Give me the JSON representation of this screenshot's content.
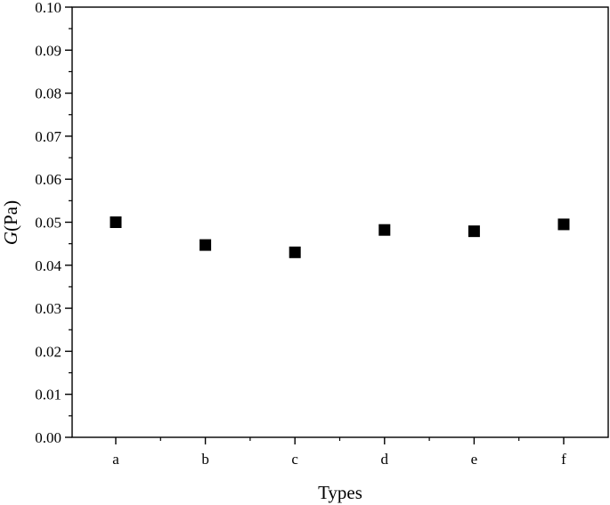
{
  "chart_data": {
    "type": "scatter",
    "categories": [
      "a",
      "b",
      "c",
      "d",
      "e",
      "f"
    ],
    "values": [
      0.05,
      0.0447,
      0.043,
      0.0482,
      0.0479,
      0.0495
    ],
    "title": "",
    "xlabel": "Types",
    "ylabel": {
      "symbol": "G",
      "unit": "(Pa)"
    },
    "ylim": [
      0.0,
      0.1
    ],
    "yticks": [
      "0.00",
      "0.01",
      "0.02",
      "0.03",
      "0.04",
      "0.05",
      "0.06",
      "0.07",
      "0.08",
      "0.09",
      "0.10"
    ],
    "marker": "square",
    "marker_color": "#000000",
    "grid": false,
    "legend": "none"
  }
}
